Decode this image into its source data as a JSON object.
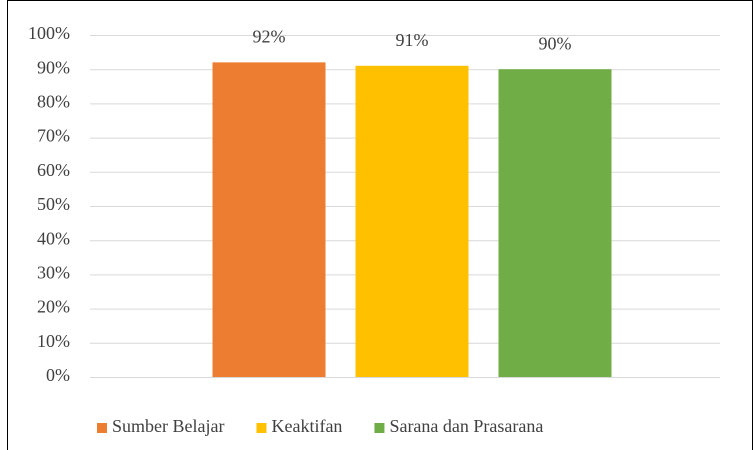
{
  "chart_data": {
    "type": "bar",
    "series": [
      {
        "name": "Sumber Belajar",
        "color": "#ed7d31",
        "values": [
          92
        ],
        "value_labels": [
          "92%"
        ]
      },
      {
        "name": "Keaktifan",
        "color": "#ffc000",
        "values": [
          91
        ],
        "value_labels": [
          "91%"
        ]
      },
      {
        "name": "Sarana dan Prasarana",
        "color": "#70ad47",
        "values": [
          90
        ],
        "value_labels": [
          "90%"
        ]
      }
    ],
    "ylim": [
      0,
      100
    ],
    "yticks": [
      {
        "value": 0,
        "label": "0%"
      },
      {
        "value": 10,
        "label": "10%"
      },
      {
        "value": 20,
        "label": "20%"
      },
      {
        "value": 30,
        "label": "30%"
      },
      {
        "value": 40,
        "label": "40%"
      },
      {
        "value": 50,
        "label": "50%"
      },
      {
        "value": 60,
        "label": "60%"
      },
      {
        "value": 70,
        "label": "70%"
      },
      {
        "value": 80,
        "label": "80%"
      },
      {
        "value": 90,
        "label": "90%"
      },
      {
        "value": 100,
        "label": "100%"
      }
    ],
    "grid": true,
    "legend": "bottom"
  }
}
